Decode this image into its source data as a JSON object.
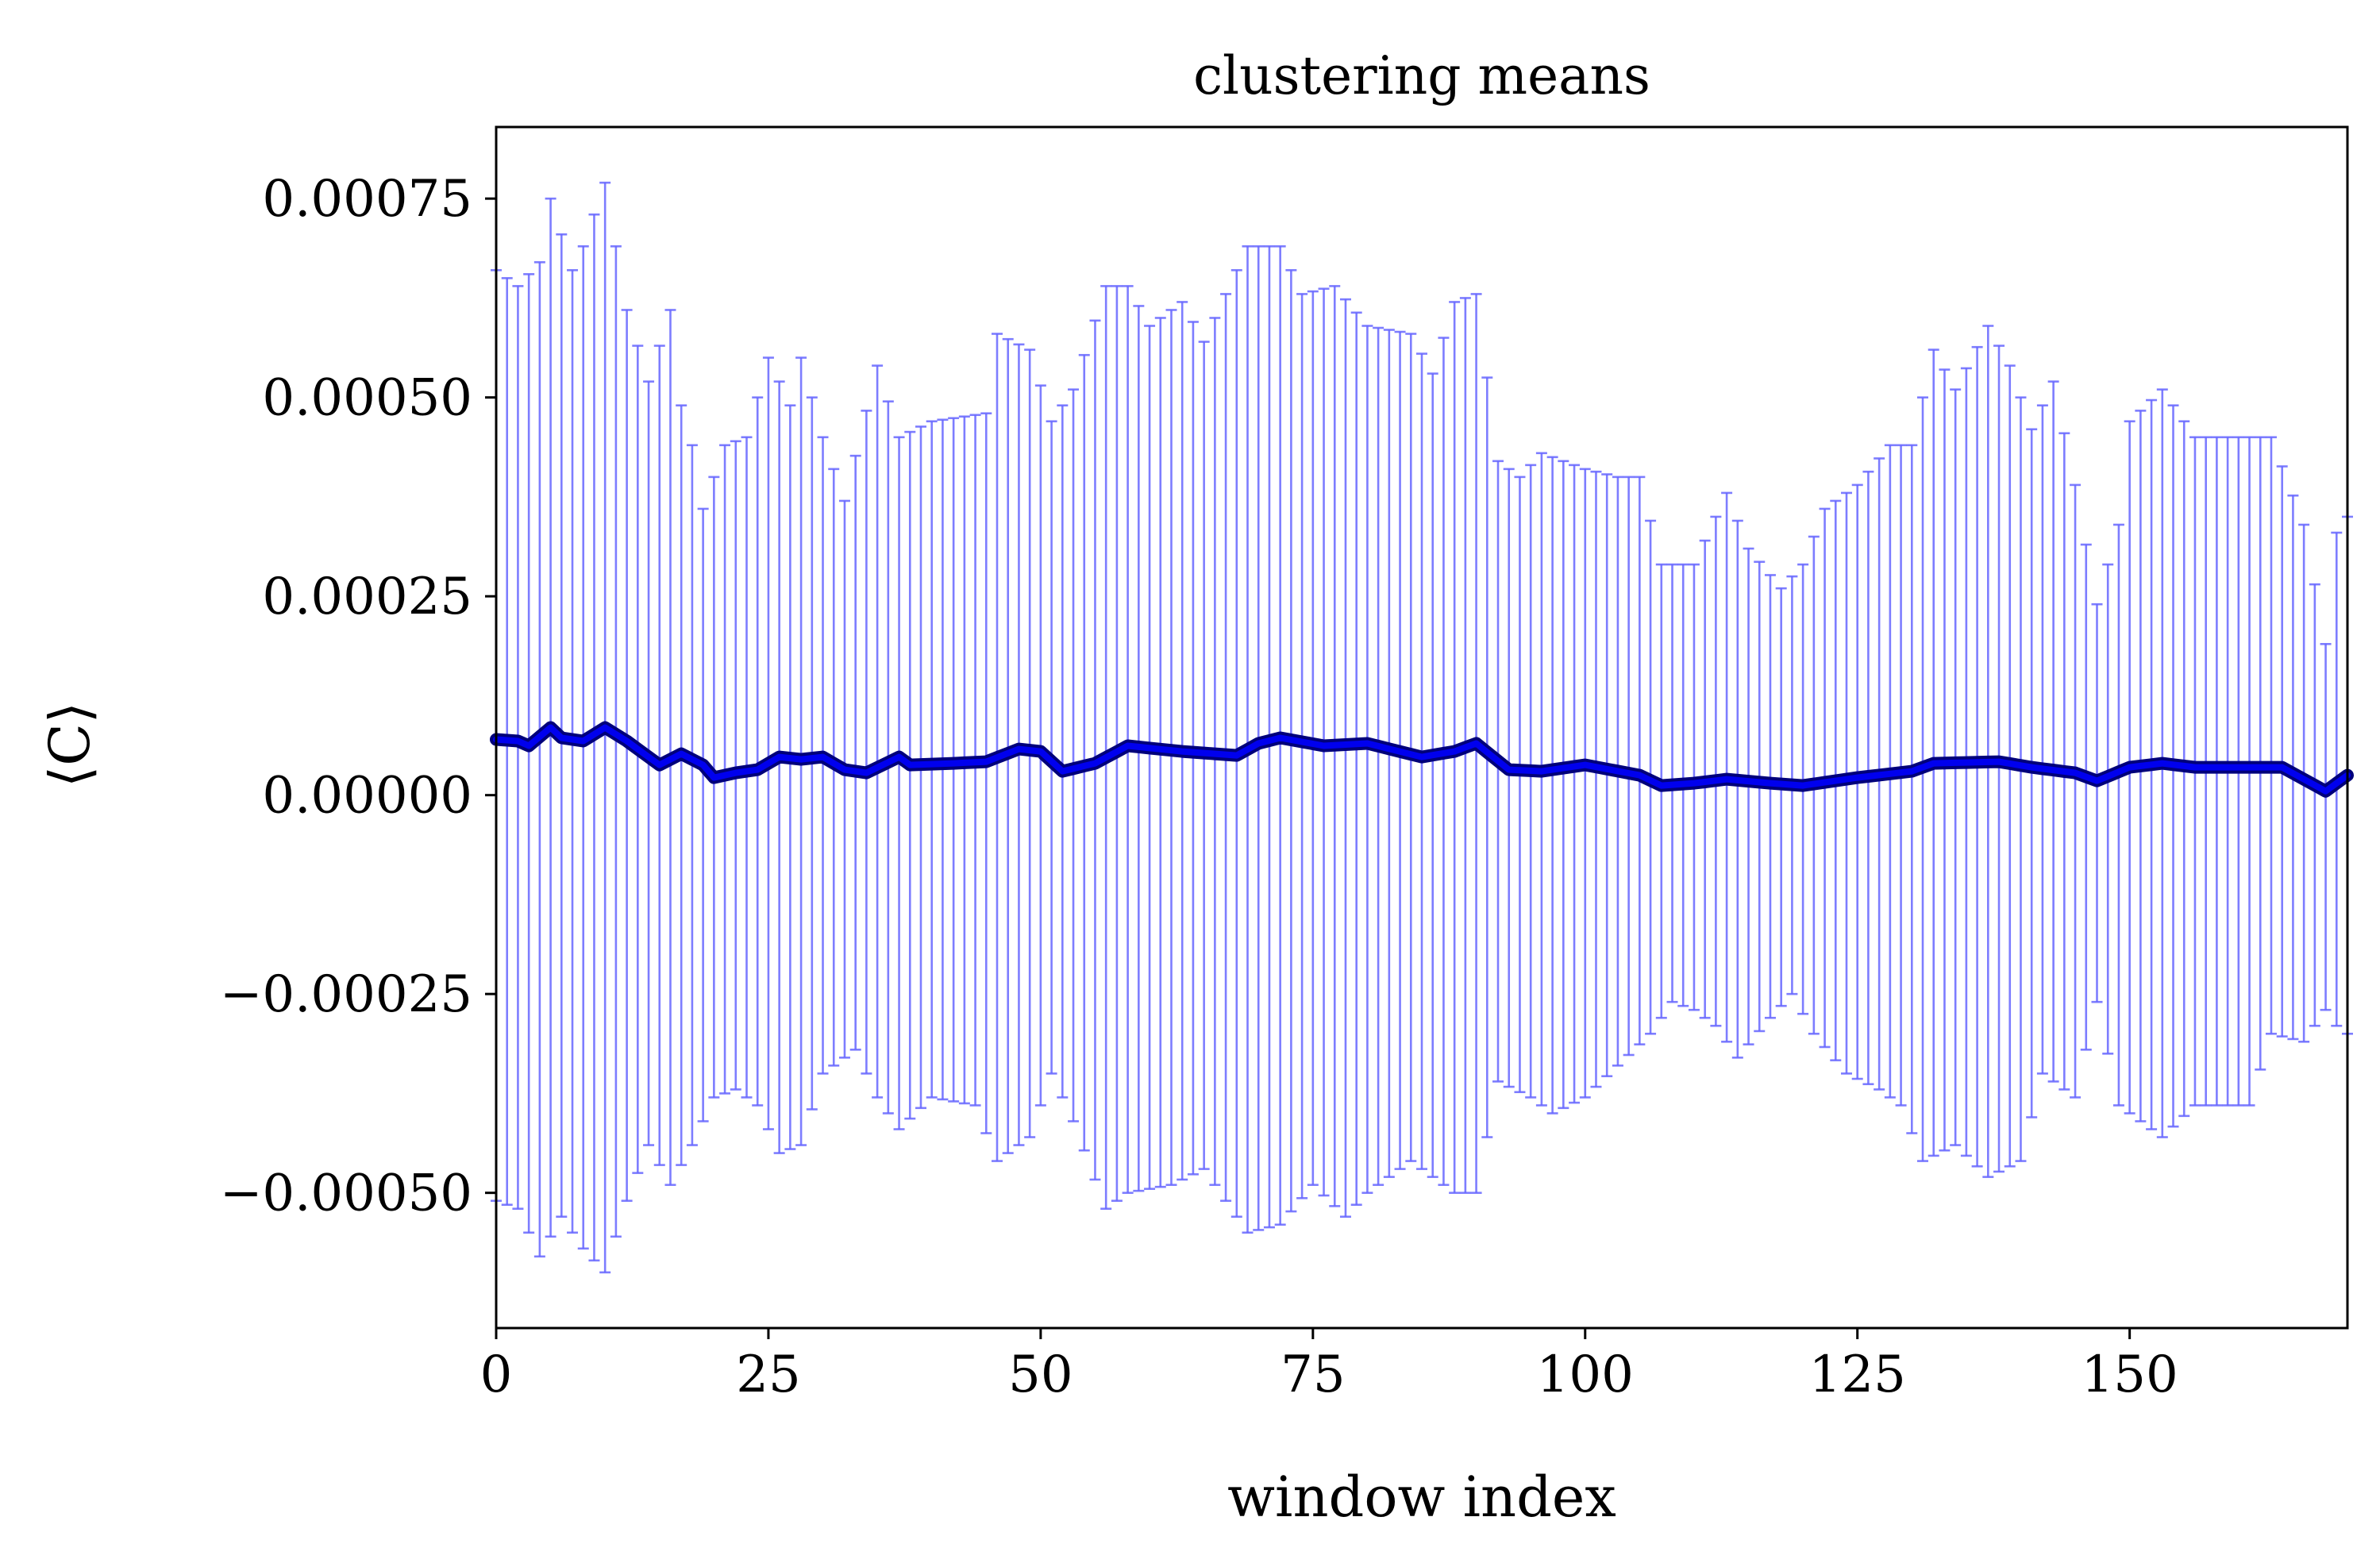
{
  "chart_data": {
    "type": "line",
    "title": "clustering means",
    "xlabel": "window index",
    "ylabel": "⟨C⟩",
    "xlim": [
      0,
      170
    ],
    "ylim": [
      -0.00067,
      0.00084
    ],
    "xticks": [
      0,
      25,
      50,
      75,
      100,
      125,
      150
    ],
    "xtick_labels": [
      "0",
      "25",
      "50",
      "75",
      "100",
      "125",
      "150"
    ],
    "yticks": [
      -0.0005,
      -0.00025,
      0,
      0.00025,
      0.0005,
      0.00075
    ],
    "ytick_labels": [
      "−0.00050",
      "−0.00025",
      "0.00000",
      "0.00025",
      "0.00050",
      "0.00075"
    ],
    "grid": false,
    "colors": {
      "mean_line": "#0000ee",
      "mean_line_edge": "#00007a",
      "error_bars": "#6666ff"
    },
    "mean_knots": [
      [
        0,
        7e-05
      ],
      [
        2,
        6.8e-05
      ],
      [
        3,
        6.2e-05
      ],
      [
        5,
        8.5e-05
      ],
      [
        6,
        7.2e-05
      ],
      [
        8,
        6.8e-05
      ],
      [
        10,
        8.5e-05
      ],
      [
        12,
        6.8e-05
      ],
      [
        15,
        3.8e-05
      ],
      [
        17,
        5.2e-05
      ],
      [
        19,
        3.8e-05
      ],
      [
        20,
        2.2e-05
      ],
      [
        22,
        2.8e-05
      ],
      [
        24,
        3.2e-05
      ],
      [
        26,
        4.8e-05
      ],
      [
        28,
        4.5e-05
      ],
      [
        30,
        4.8e-05
      ],
      [
        32,
        3.2e-05
      ],
      [
        34,
        2.8e-05
      ],
      [
        37,
        4.8e-05
      ],
      [
        38,
        3.8e-05
      ],
      [
        42,
        4e-05
      ],
      [
        45,
        4.2e-05
      ],
      [
        48,
        5.8e-05
      ],
      [
        50,
        5.5e-05
      ],
      [
        52,
        3e-05
      ],
      [
        55,
        4e-05
      ],
      [
        58,
        6.2e-05
      ],
      [
        63,
        5.5e-05
      ],
      [
        68,
        5e-05
      ],
      [
        70,
        6.5e-05
      ],
      [
        72,
        7.2e-05
      ],
      [
        76,
        6.2e-05
      ],
      [
        80,
        6.5e-05
      ],
      [
        85,
        4.8e-05
      ],
      [
        88,
        5.5e-05
      ],
      [
        90,
        6.5e-05
      ],
      [
        93,
        3.2e-05
      ],
      [
        96,
        3e-05
      ],
      [
        100,
        3.8e-05
      ],
      [
        105,
        2.5e-05
      ],
      [
        107,
        1.2e-05
      ],
      [
        110,
        1.5e-05
      ],
      [
        113,
        2e-05
      ],
      [
        117,
        1.5e-05
      ],
      [
        120,
        1.2e-05
      ],
      [
        125,
        2.2e-05
      ],
      [
        130,
        3e-05
      ],
      [
        132,
        4e-05
      ],
      [
        138,
        4.2e-05
      ],
      [
        141,
        3.5e-05
      ],
      [
        145,
        2.8e-05
      ],
      [
        147,
        1.8e-05
      ],
      [
        150,
        3.5e-05
      ],
      [
        153,
        4e-05
      ],
      [
        156,
        3.5e-05
      ],
      [
        164,
        3.5e-05
      ],
      [
        166,
        2e-05
      ],
      [
        168,
        5e-06
      ],
      [
        170,
        2.5e-05
      ]
    ],
    "upper_knots": [
      [
        0,
        0.00066
      ],
      [
        2,
        0.00064
      ],
      [
        4,
        0.00067
      ],
      [
        5,
        0.00075
      ],
      [
        7,
        0.00066
      ],
      [
        8,
        0.00069
      ],
      [
        10,
        0.00077
      ],
      [
        12,
        0.00061
      ],
      [
        14,
        0.00052
      ],
      [
        16,
        0.00061
      ],
      [
        17,
        0.00049
      ],
      [
        18,
        0.00044
      ],
      [
        19,
        0.00036
      ],
      [
        21,
        0.00044
      ],
      [
        23,
        0.00045
      ],
      [
        25,
        0.00055
      ],
      [
        27,
        0.00049
      ],
      [
        28,
        0.00055
      ],
      [
        30,
        0.00045
      ],
      [
        32,
        0.00037
      ],
      [
        35,
        0.00054
      ],
      [
        37,
        0.00045
      ],
      [
        40,
        0.00047
      ],
      [
        45,
        0.00048
      ],
      [
        46,
        0.00058
      ],
      [
        49,
        0.00056
      ],
      [
        51,
        0.00047
      ],
      [
        53,
        0.00051
      ],
      [
        56,
        0.00064
      ],
      [
        58,
        0.00064
      ],
      [
        60,
        0.00059
      ],
      [
        63,
        0.00062
      ],
      [
        65,
        0.00057
      ],
      [
        69,
        0.00069
      ],
      [
        72,
        0.00069
      ],
      [
        74,
        0.00063
      ],
      [
        77,
        0.00064
      ],
      [
        80,
        0.00059
      ],
      [
        84,
        0.00058
      ],
      [
        86,
        0.00053
      ],
      [
        88,
        0.00062
      ],
      [
        90,
        0.00063
      ],
      [
        92,
        0.00042
      ],
      [
        94,
        0.0004
      ],
      [
        96,
        0.00043
      ],
      [
        98,
        0.00042
      ],
      [
        100,
        0.00041
      ],
      [
        103,
        0.0004
      ],
      [
        105,
        0.0004
      ],
      [
        107,
        0.00029
      ],
      [
        110,
        0.00029
      ],
      [
        113,
        0.00038
      ],
      [
        115,
        0.00031
      ],
      [
        118,
        0.00026
      ],
      [
        120,
        0.00029
      ],
      [
        122,
        0.00036
      ],
      [
        125,
        0.00039
      ],
      [
        128,
        0.00044
      ],
      [
        130,
        0.00044
      ],
      [
        132,
        0.00056
      ],
      [
        134,
        0.00051
      ],
      [
        137,
        0.00059
      ],
      [
        139,
        0.00054
      ],
      [
        141,
        0.00046
      ],
      [
        143,
        0.00052
      ],
      [
        145,
        0.00039
      ],
      [
        147,
        0.00024
      ],
      [
        149,
        0.00034
      ],
      [
        150,
        0.00047
      ],
      [
        153,
        0.00051
      ],
      [
        156,
        0.00045
      ],
      [
        163,
        0.00045
      ],
      [
        166,
        0.00034
      ],
      [
        168,
        0.00019
      ],
      [
        169,
        0.00033
      ],
      [
        170,
        0.00035
      ]
    ],
    "lower_knots": [
      [
        0,
        -0.00051
      ],
      [
        2,
        -0.00052
      ],
      [
        4,
        -0.00058
      ],
      [
        6,
        -0.00053
      ],
      [
        8,
        -0.00057
      ],
      [
        10,
        -0.0006
      ],
      [
        12,
        -0.00051
      ],
      [
        14,
        -0.00044
      ],
      [
        16,
        -0.00049
      ],
      [
        18,
        -0.00044
      ],
      [
        20,
        -0.00038
      ],
      [
        22,
        -0.00037
      ],
      [
        24,
        -0.00039
      ],
      [
        26,
        -0.00045
      ],
      [
        28,
        -0.00044
      ],
      [
        30,
        -0.00035
      ],
      [
        33,
        -0.00032
      ],
      [
        35,
        -0.00038
      ],
      [
        37,
        -0.00042
      ],
      [
        40,
        -0.00038
      ],
      [
        44,
        -0.00039
      ],
      [
        46,
        -0.00046
      ],
      [
        49,
        -0.00043
      ],
      [
        51,
        -0.00035
      ],
      [
        53,
        -0.00041
      ],
      [
        56,
        -0.00052
      ],
      [
        58,
        -0.0005
      ],
      [
        62,
        -0.00049
      ],
      [
        65,
        -0.00047
      ],
      [
        69,
        -0.00055
      ],
      [
        72,
        -0.00054
      ],
      [
        75,
        -0.00049
      ],
      [
        78,
        -0.00053
      ],
      [
        80,
        -0.0005
      ],
      [
        84,
        -0.00046
      ],
      [
        86,
        -0.00048
      ],
      [
        88,
        -0.0005
      ],
      [
        90,
        -0.0005
      ],
      [
        92,
        -0.00036
      ],
      [
        95,
        -0.00038
      ],
      [
        97,
        -0.0004
      ],
      [
        100,
        -0.00038
      ],
      [
        103,
        -0.00034
      ],
      [
        106,
        -0.0003
      ],
      [
        108,
        -0.00026
      ],
      [
        110,
        -0.00027
      ],
      [
        112,
        -0.00029
      ],
      [
        114,
        -0.00033
      ],
      [
        117,
        -0.00028
      ],
      [
        119,
        -0.00025
      ],
      [
        121,
        -0.0003
      ],
      [
        124,
        -0.00035
      ],
      [
        127,
        -0.00037
      ],
      [
        129,
        -0.00039
      ],
      [
        131,
        -0.00046
      ],
      [
        134,
        -0.00044
      ],
      [
        137,
        -0.00048
      ],
      [
        140,
        -0.00046
      ],
      [
        142,
        -0.00035
      ],
      [
        145,
        -0.00038
      ],
      [
        147,
        -0.00026
      ],
      [
        149,
        -0.00039
      ],
      [
        153,
        -0.00043
      ],
      [
        156,
        -0.00039
      ],
      [
        161,
        -0.00039
      ],
      [
        163,
        -0.0003
      ],
      [
        166,
        -0.00031
      ],
      [
        168,
        -0.00027
      ],
      [
        169,
        -0.00029
      ],
      [
        170,
        -0.0003
      ]
    ]
  }
}
